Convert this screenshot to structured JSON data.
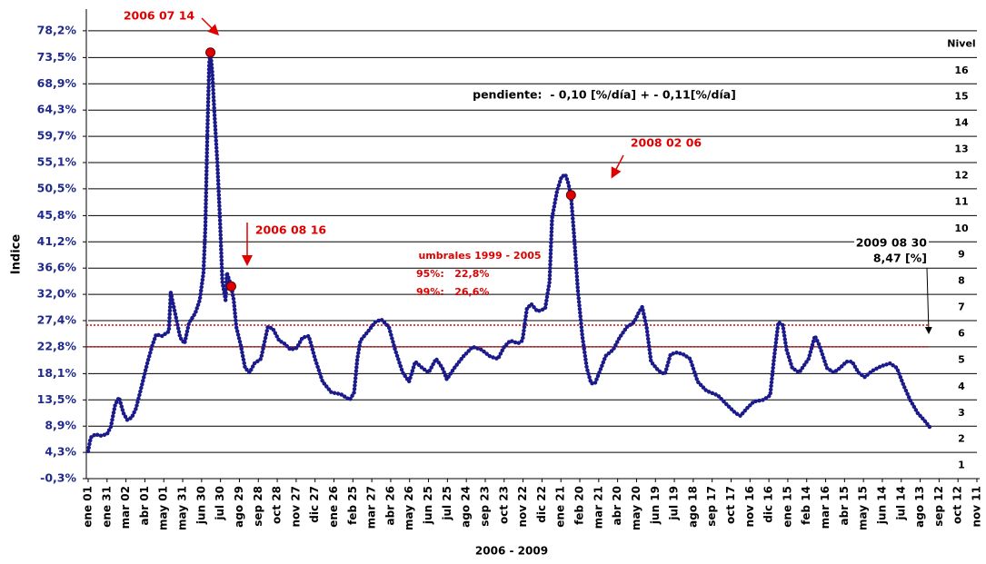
{
  "chart_data": {
    "type": "line",
    "ylabel": "Indice",
    "xlabel": "2006 - 2009",
    "xlim": [
      0,
      1410
    ],
    "ylim": [
      -0.3,
      82
    ],
    "xticks": [
      {
        "value": 0,
        "label": "ene 01"
      },
      {
        "value": 30,
        "label": "ene 31"
      },
      {
        "value": 60,
        "label": "mar 02"
      },
      {
        "value": 90,
        "label": "abr 01"
      },
      {
        "value": 120,
        "label": "may 01"
      },
      {
        "value": 150,
        "label": "may 31"
      },
      {
        "value": 180,
        "label": "jun 30"
      },
      {
        "value": 210,
        "label": "jul 30"
      },
      {
        "value": 240,
        "label": "ago 29"
      },
      {
        "value": 270,
        "label": "sep 28"
      },
      {
        "value": 300,
        "label": "oct 28"
      },
      {
        "value": 330,
        "label": "nov 27"
      },
      {
        "value": 360,
        "label": "dic 27"
      },
      {
        "value": 390,
        "label": "ene 26"
      },
      {
        "value": 420,
        "label": "feb 25"
      },
      {
        "value": 450,
        "label": "mar 27"
      },
      {
        "value": 480,
        "label": "abr 26"
      },
      {
        "value": 510,
        "label": "may 26"
      },
      {
        "value": 540,
        "label": "jun 25"
      },
      {
        "value": 570,
        "label": "jul 25"
      },
      {
        "value": 600,
        "label": "ago 24"
      },
      {
        "value": 630,
        "label": "sep 23"
      },
      {
        "value": 660,
        "label": "oct 23"
      },
      {
        "value": 690,
        "label": "nov 22"
      },
      {
        "value": 720,
        "label": "dic 22"
      },
      {
        "value": 750,
        "label": "ene 21"
      },
      {
        "value": 780,
        "label": "feb 20"
      },
      {
        "value": 810,
        "label": "mar 21"
      },
      {
        "value": 840,
        "label": "abr 20"
      },
      {
        "value": 870,
        "label": "may 20"
      },
      {
        "value": 900,
        "label": "jun 19"
      },
      {
        "value": 930,
        "label": "jul 19"
      },
      {
        "value": 960,
        "label": "ago 18"
      },
      {
        "value": 990,
        "label": "sep 17"
      },
      {
        "value": 1020,
        "label": "oct 17"
      },
      {
        "value": 1050,
        "label": "nov 16"
      },
      {
        "value": 1080,
        "label": "dic 16"
      },
      {
        "value": 1110,
        "label": "ene 15"
      },
      {
        "value": 1140,
        "label": "feb 14"
      },
      {
        "value": 1170,
        "label": "mar 16"
      },
      {
        "value": 1200,
        "label": "abr 15"
      },
      {
        "value": 1230,
        "label": "may 15"
      },
      {
        "value": 1260,
        "label": "jun 14"
      },
      {
        "value": 1290,
        "label": "jul 14"
      },
      {
        "value": 1320,
        "label": "ago 13"
      },
      {
        "value": 1350,
        "label": "sep 12"
      },
      {
        "value": 1380,
        "label": "oct 12"
      },
      {
        "value": 1410,
        "label": "nov 11"
      }
    ],
    "yticks": [
      {
        "value": -0.3,
        "label": "-0,3%"
      },
      {
        "value": 4.3,
        "label": "4,3%"
      },
      {
        "value": 8.9,
        "label": "8,9%"
      },
      {
        "value": 13.5,
        "label": "13,5%"
      },
      {
        "value": 18.1,
        "label": "18,1%"
      },
      {
        "value": 22.8,
        "label": "22,8%"
      },
      {
        "value": 27.4,
        "label": "27,4%"
      },
      {
        "value": 32.0,
        "label": "32,0%"
      },
      {
        "value": 36.6,
        "label": "36,6%"
      },
      {
        "value": 41.2,
        "label": "41,2%"
      },
      {
        "value": 45.8,
        "label": "45,8%"
      },
      {
        "value": 50.5,
        "label": "50,5%"
      },
      {
        "value": 55.1,
        "label": "55,1%"
      },
      {
        "value": 59.7,
        "label": "59,7%"
      },
      {
        "value": 64.3,
        "label": "64,3%"
      },
      {
        "value": 68.9,
        "label": "68,9%"
      },
      {
        "value": 73.5,
        "label": "73,5%"
      },
      {
        "value": 78.2,
        "label": "78,2%"
      }
    ],
    "grid": true,
    "levels": {
      "title": "Nivel",
      "labels": [
        1,
        2,
        3,
        4,
        5,
        6,
        7,
        8,
        9,
        10,
        11,
        12,
        13,
        14,
        15,
        16
      ]
    },
    "reference_lines": [
      {
        "y": 22.8,
        "color": "#e00000"
      },
      {
        "y": 26.6,
        "color": "#e00000"
      }
    ],
    "series": [
      {
        "color": "#1a1a8a",
        "marker": "line",
        "x": [
          0,
          4,
          12,
          19,
          30,
          36,
          43,
          49,
          56,
          62,
          69,
          76,
          85,
          94,
          102,
          108,
          117,
          128,
          131,
          138,
          146,
          153,
          160,
          170,
          177,
          183,
          186,
          189,
          192,
          194,
          197,
          200,
          205,
          209,
          213,
          218,
          220,
          227,
          231,
          235,
          242,
          249,
          256,
          264,
          274,
          285,
          293,
          303,
          311,
          321,
          331,
          340,
          350,
          360,
          372,
          386,
          401,
          415,
          422,
          427,
          432,
          444,
          455,
          465,
          477,
          487,
          499,
          509,
          519,
          530,
          540,
          552,
          562,
          569,
          581,
          595,
          610,
          624,
          638,
          650,
          660,
          670,
          682,
          689,
          696,
          703,
          713,
          725,
          732,
          736,
          744,
          751,
          757,
          761,
          766,
          771,
          777,
          784,
          791,
          798,
          804,
          811,
          821,
          833,
          843,
          855,
          866,
          873,
          879,
          886,
          893,
          905,
          915,
          924,
          934,
          944,
          955,
          967,
          981,
          999,
          1013,
          1027,
          1035,
          1045,
          1056,
          1071,
          1082,
          1088,
          1095,
          1102,
          1108,
          1117,
          1128,
          1143,
          1153,
          1160,
          1172,
          1183,
          1193,
          1203,
          1212,
          1222,
          1232,
          1244,
          1258,
          1272,
          1283,
          1294,
          1304,
          1316,
          1326,
          1337
        ],
        "values": [
          4.5,
          6.9,
          7.5,
          7.2,
          7.5,
          8.8,
          12.7,
          13.9,
          11.2,
          10,
          10.4,
          12,
          16,
          20,
          23.1,
          25,
          24.7,
          25.5,
          32.3,
          28.7,
          24.4,
          23.4,
          27,
          28.7,
          31,
          35.8,
          43.8,
          59.7,
          72.5,
          74.4,
          70.9,
          64.5,
          55,
          45.4,
          34.2,
          31,
          35.8,
          33.4,
          31,
          26.3,
          23.1,
          19.1,
          18.3,
          19.9,
          20.7,
          26.3,
          26,
          23.9,
          23.4,
          22.3,
          22.6,
          24.4,
          24.7,
          20.7,
          16.7,
          14.8,
          14.5,
          13.5,
          14.8,
          20.7,
          23.9,
          25.5,
          27.1,
          27.6,
          26.3,
          22.3,
          18.3,
          16.7,
          20.2,
          19.1,
          18.3,
          20.7,
          19.1,
          17.1,
          19.1,
          21.1,
          22.8,
          22.3,
          21.1,
          20.7,
          22.8,
          23.9,
          23.4,
          23.9,
          29.5,
          30.3,
          29,
          29.5,
          34.2,
          45.4,
          50.2,
          52.6,
          53,
          51.8,
          49.4,
          42.2,
          32.7,
          24.7,
          19.1,
          16.4,
          16.4,
          18.3,
          21.2,
          22.3,
          24.4,
          26.3,
          27.1,
          28.7,
          29.8,
          26.3,
          20.2,
          18.6,
          18,
          21.5,
          21.8,
          21.5,
          20.7,
          16.7,
          15.1,
          14.3,
          12.7,
          11.2,
          10.7,
          12,
          13.2,
          13.5,
          14.3,
          20.7,
          27.1,
          26.6,
          22.3,
          19.1,
          18.3,
          20.7,
          24.7,
          23.1,
          19.1,
          18.3,
          19.1,
          20.2,
          20.2,
          18.3,
          17.5,
          18.6,
          19.4,
          19.9,
          19.1,
          16,
          13.5,
          11.2,
          10,
          8.47
        ]
      },
      {
        "color": "#e00000",
        "marker": "dot",
        "x": [
          194,
          227,
          766
        ],
        "values": [
          74.4,
          33.4,
          49.4
        ]
      }
    ],
    "annotations": [
      {
        "text": "2006 07 14",
        "color": "#e00000"
      },
      {
        "text": "2006 08 16",
        "color": "#e00000"
      },
      {
        "text": "2008 02 06",
        "color": "#e00000"
      },
      {
        "text": "2009 08 30",
        "color": "#000000"
      },
      {
        "text": "8,47 [%]",
        "color": "#000000"
      },
      {
        "text": "pendiente:  - 0,10 [%/día] + - 0,11[%/día]",
        "color": "#000000"
      },
      {
        "text": "umbrales 1999 - 2005",
        "color": "#e00000"
      },
      {
        "text": "95%:   22,8%",
        "color": "#e00000"
      },
      {
        "text": "99%:   26,6%",
        "color": "#e00000"
      }
    ]
  }
}
